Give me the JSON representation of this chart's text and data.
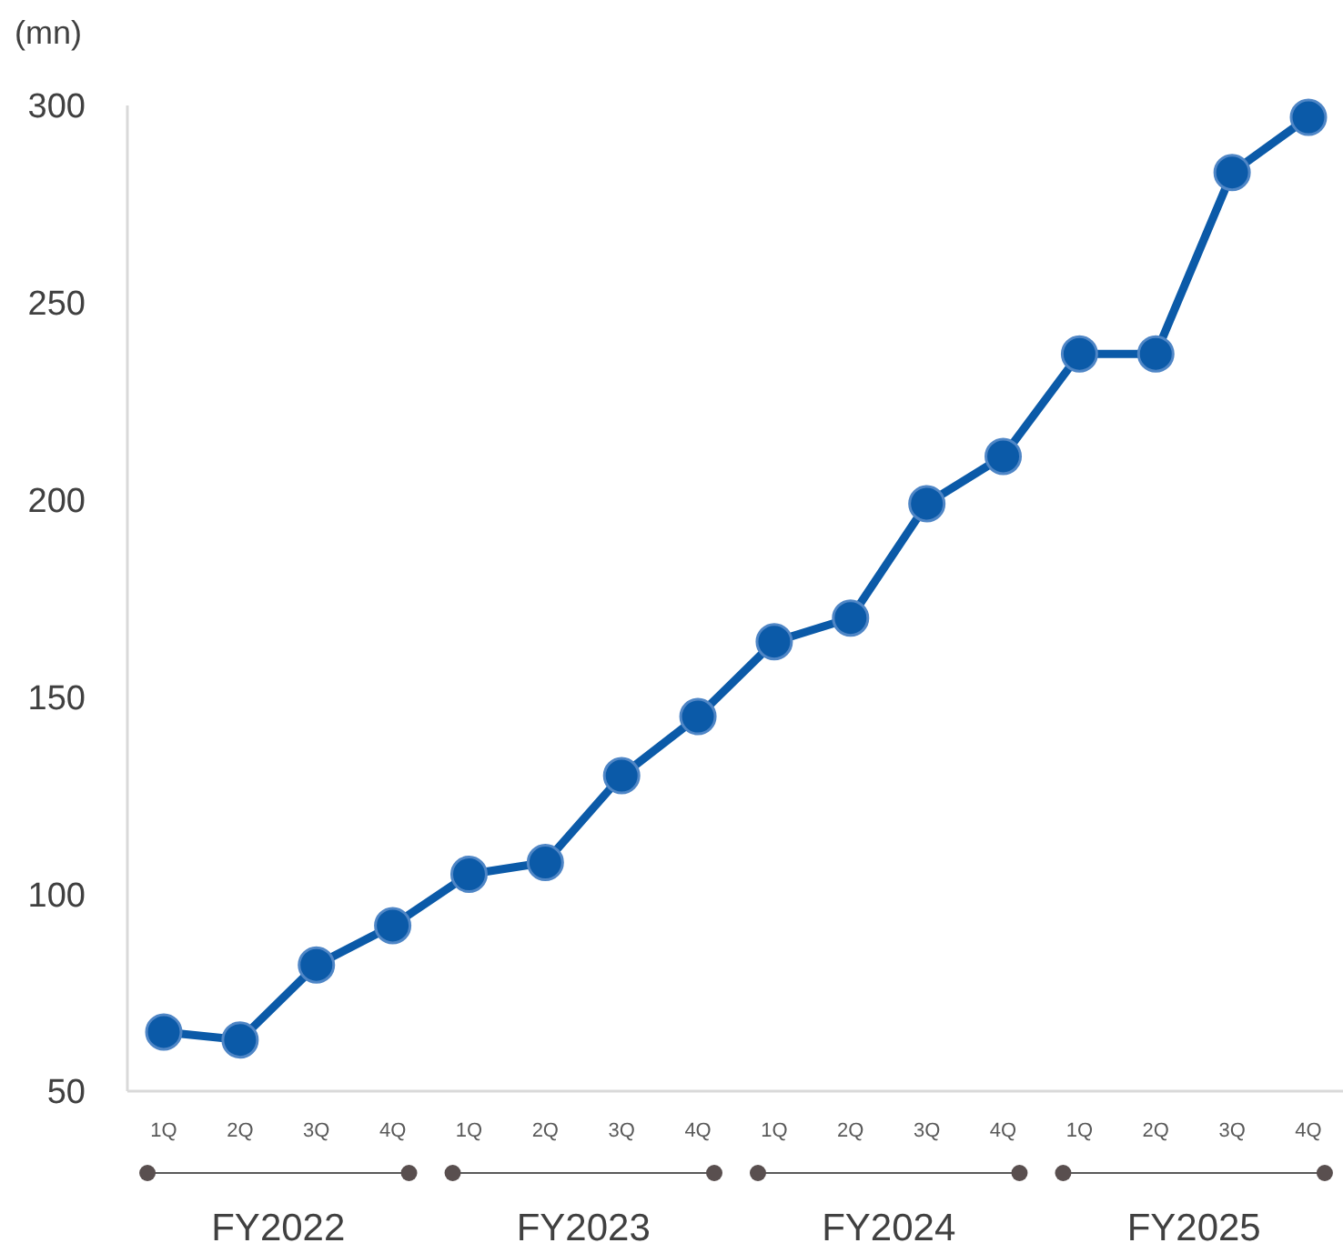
{
  "chart_data": {
    "type": "line",
    "ylabel": "(mn)",
    "categories": [
      "1Q",
      "2Q",
      "3Q",
      "4Q",
      "1Q",
      "2Q",
      "3Q",
      "4Q",
      "1Q",
      "2Q",
      "3Q",
      "4Q",
      "1Q",
      "2Q",
      "3Q",
      "4Q"
    ],
    "series": [
      {
        "color": "#0b5aa8",
        "values": [
          65,
          63,
          82,
          92,
          105,
          108,
          130,
          145,
          164,
          170,
          199,
          211,
          237,
          237,
          283,
          297
        ]
      }
    ],
    "ylim": [
      50,
      300
    ],
    "yticks": [
      50,
      100,
      150,
      200,
      250,
      300
    ],
    "grid": false,
    "marker": "circle",
    "line_style": "solid",
    "annotations": [
      "FY2022",
      "FY2023",
      "FY2024",
      "FY2025"
    ]
  }
}
